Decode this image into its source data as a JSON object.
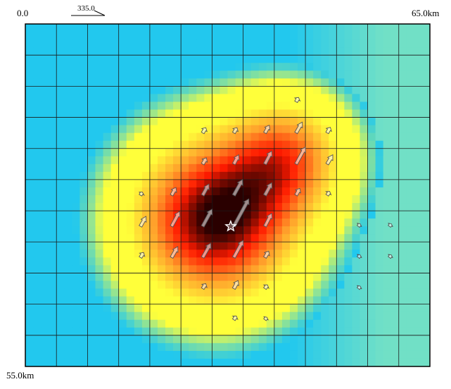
{
  "map": {
    "corner_labels": {
      "top_left": "0.0",
      "top_right": "65.0km",
      "bottom_left": "55.0km"
    },
    "scale_label": "335.0",
    "grid": {
      "columns": 13,
      "rows": 11
    },
    "colors": {
      "background_cyan": "#22c8ee",
      "background_teal": "#7fe4bf",
      "yellow": "#ffff3a",
      "orange": "#ff9a2a",
      "red": "#ff1a00",
      "dark": "#2a0000",
      "grid_line": "#1a1a1a",
      "arrow_stroke": "#555555"
    },
    "epicenter": {
      "col": 6.6,
      "row": 6.5,
      "symbol": "star-icon"
    },
    "slip_sources": [
      {
        "col": 6.1,
        "row": 6.3,
        "amplitude": 1.0,
        "sigma": 1.9
      },
      {
        "col": 8.5,
        "row": 4.2,
        "amplitude": 0.55,
        "sigma": 1.35
      }
    ],
    "vectors": [
      {
        "col": 8.7,
        "row": 2.5,
        "dx": 0.08,
        "dy": -0.14
      },
      {
        "col": 5.7,
        "row": 3.5,
        "dx": 0.1,
        "dy": -0.17
      },
      {
        "col": 6.7,
        "row": 3.5,
        "dx": 0.1,
        "dy": -0.17
      },
      {
        "col": 7.7,
        "row": 3.5,
        "dx": 0.14,
        "dy": -0.25
      },
      {
        "col": 8.7,
        "row": 3.5,
        "dx": 0.2,
        "dy": -0.35
      },
      {
        "col": 9.7,
        "row": 3.5,
        "dx": 0.1,
        "dy": -0.18
      },
      {
        "col": 5.7,
        "row": 4.5,
        "dx": 0.12,
        "dy": -0.2
      },
      {
        "col": 6.7,
        "row": 4.5,
        "dx": 0.16,
        "dy": -0.3
      },
      {
        "col": 7.7,
        "row": 4.5,
        "dx": 0.22,
        "dy": -0.42
      },
      {
        "col": 8.7,
        "row": 4.5,
        "dx": 0.3,
        "dy": -0.55
      },
      {
        "col": 9.7,
        "row": 4.5,
        "dx": 0.18,
        "dy": -0.3
      },
      {
        "col": 3.7,
        "row": 5.5,
        "dx": 0.06,
        "dy": -0.1
      },
      {
        "col": 4.7,
        "row": 5.5,
        "dx": 0.14,
        "dy": -0.25
      },
      {
        "col": 5.7,
        "row": 5.5,
        "dx": 0.2,
        "dy": -0.36
      },
      {
        "col": 6.7,
        "row": 5.5,
        "dx": 0.28,
        "dy": -0.5
      },
      {
        "col": 7.7,
        "row": 5.5,
        "dx": 0.22,
        "dy": -0.4
      },
      {
        "col": 8.7,
        "row": 5.5,
        "dx": 0.12,
        "dy": -0.22
      },
      {
        "col": 9.7,
        "row": 5.5,
        "dx": 0.08,
        "dy": -0.12
      },
      {
        "col": 3.7,
        "row": 6.5,
        "dx": 0.18,
        "dy": -0.32
      },
      {
        "col": 4.7,
        "row": 6.5,
        "dx": 0.26,
        "dy": -0.48
      },
      {
        "col": 5.7,
        "row": 6.5,
        "dx": 0.3,
        "dy": -0.55
      },
      {
        "col": 6.7,
        "row": 6.5,
        "dx": 0.48,
        "dy": -0.88
      },
      {
        "col": 7.7,
        "row": 6.5,
        "dx": 0.22,
        "dy": -0.42
      },
      {
        "col": 10.7,
        "row": 6.5,
        "dx": 0.06,
        "dy": -0.08
      },
      {
        "col": 11.7,
        "row": 6.5,
        "dx": 0.06,
        "dy": -0.08
      },
      {
        "col": 3.7,
        "row": 7.5,
        "dx": 0.1,
        "dy": -0.16
      },
      {
        "col": 4.7,
        "row": 7.5,
        "dx": 0.2,
        "dy": -0.35
      },
      {
        "col": 5.7,
        "row": 7.5,
        "dx": 0.26,
        "dy": -0.46
      },
      {
        "col": 6.7,
        "row": 7.5,
        "dx": 0.3,
        "dy": -0.55
      },
      {
        "col": 7.7,
        "row": 7.5,
        "dx": 0.12,
        "dy": -0.2
      },
      {
        "col": 10.7,
        "row": 7.5,
        "dx": 0.06,
        "dy": -0.08
      },
      {
        "col": 11.7,
        "row": 7.5,
        "dx": 0.06,
        "dy": -0.08
      },
      {
        "col": 5.7,
        "row": 8.5,
        "dx": 0.1,
        "dy": -0.16
      },
      {
        "col": 6.7,
        "row": 8.5,
        "dx": 0.14,
        "dy": -0.26
      },
      {
        "col": 7.7,
        "row": 8.5,
        "dx": 0.08,
        "dy": -0.12
      },
      {
        "col": 10.7,
        "row": 8.5,
        "dx": 0.06,
        "dy": -0.08
      },
      {
        "col": 6.7,
        "row": 9.5,
        "dx": 0.08,
        "dy": -0.12
      },
      {
        "col": 7.7,
        "row": 9.5,
        "dx": 0.06,
        "dy": -0.08
      }
    ]
  }
}
